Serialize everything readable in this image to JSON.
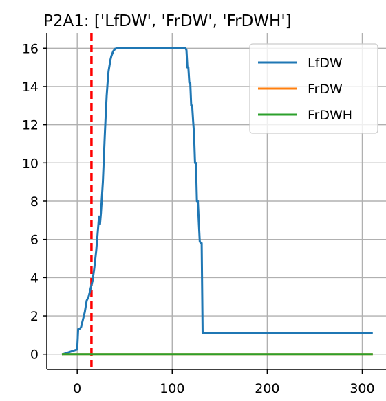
{
  "chart_data": {
    "type": "line",
    "title": "P2A1: ['LfDW', 'FrDW', 'FrDWH']",
    "xlabel": "",
    "ylabel": "",
    "xlim": [
      -32,
      325
    ],
    "ylim": [
      -0.8,
      16.8
    ],
    "xticks": [
      0,
      100,
      200,
      300
    ],
    "yticks": [
      0,
      2,
      4,
      6,
      8,
      10,
      12,
      14,
      16
    ],
    "grid": true,
    "legend_position": "top-right",
    "vline": {
      "x": 15,
      "color": "#ff0000",
      "style": "dashed"
    },
    "series": [
      {
        "name": "LfDW",
        "color": "#1f77b4",
        "x": [
          -15,
          0,
          1,
          2,
          3,
          4,
          6,
          8,
          10,
          12,
          13,
          14,
          16,
          18,
          20,
          21,
          22,
          23,
          24,
          25,
          26,
          27,
          28,
          29,
          30,
          31,
          32,
          33,
          34,
          35,
          36,
          38,
          40,
          42,
          45,
          50,
          60,
          80,
          100,
          114,
          115,
          116,
          117,
          118,
          119,
          120,
          121,
          122,
          123,
          124,
          125,
          126,
          127,
          128,
          129,
          130,
          131,
          132,
          150,
          200,
          250,
          310
        ],
        "values": [
          0.0,
          0.25,
          1.3,
          1.3,
          1.35,
          1.4,
          1.8,
          2.2,
          2.8,
          3.0,
          3.2,
          3.4,
          3.8,
          4.5,
          5.4,
          6.0,
          6.6,
          7.2,
          6.8,
          7.4,
          8.2,
          9.0,
          10.2,
          11.4,
          12.5,
          13.5,
          14.2,
          14.8,
          15.1,
          15.4,
          15.6,
          15.85,
          15.97,
          16.0,
          16.0,
          16.0,
          16.0,
          16.0,
          16.0,
          16.0,
          15.9,
          15.0,
          15.0,
          14.2,
          14.2,
          13.0,
          13.0,
          12.2,
          11.5,
          10.0,
          10.0,
          8.0,
          8.0,
          6.9,
          5.9,
          5.8,
          5.8,
          1.1,
          1.1,
          1.1,
          1.1,
          1.1
        ]
      },
      {
        "name": "FrDW",
        "color": "#ff7f0e",
        "x": [
          -15,
          310
        ],
        "values": [
          0,
          0
        ]
      },
      {
        "name": "FrDWH",
        "color": "#2ca02c",
        "x": [
          -15,
          310
        ],
        "values": [
          0,
          0
        ]
      }
    ]
  }
}
